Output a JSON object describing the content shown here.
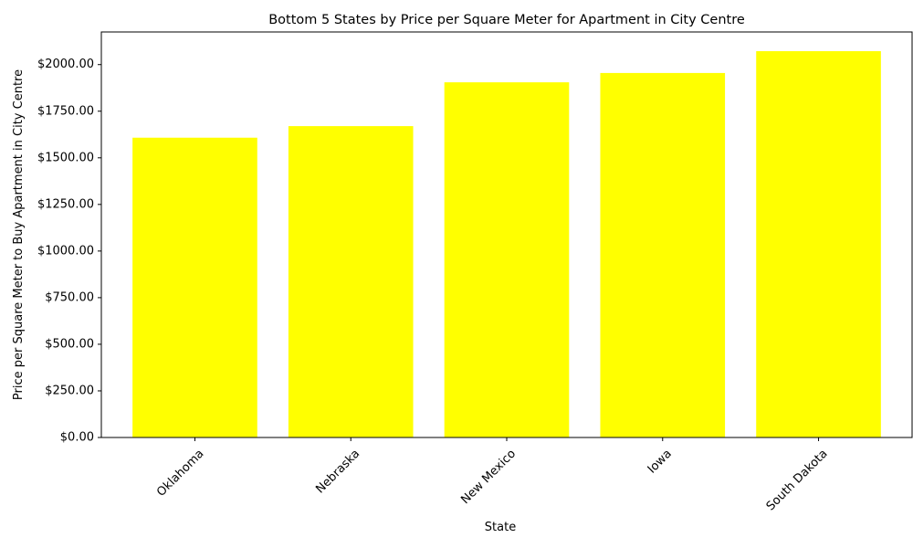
{
  "chart_data": {
    "type": "bar",
    "title": "Bottom 5 States by Price per Square Meter for Apartment in City Centre",
    "xlabel": "State",
    "ylabel": "Price per Square Meter to Buy Apartment in City Centre",
    "categories": [
      "Oklahoma",
      "Nebraska",
      "New Mexico",
      "Iowa",
      "South Dakota"
    ],
    "values": [
      1608,
      1670,
      1905,
      1955,
      2072
    ],
    "ylim": [
      0,
      2175
    ],
    "yticks": [
      0,
      250,
      500,
      750,
      1000,
      1250,
      1500,
      1750,
      2000
    ],
    "ytick_labels": [
      "$0.00",
      "$250.00",
      "$500.00",
      "$750.00",
      "$1000.00",
      "$1250.00",
      "$1500.00",
      "$1750.00",
      "$2000.00"
    ],
    "bar_color": "#ffff00",
    "grid": false,
    "xtick_rotation_deg": 45
  }
}
